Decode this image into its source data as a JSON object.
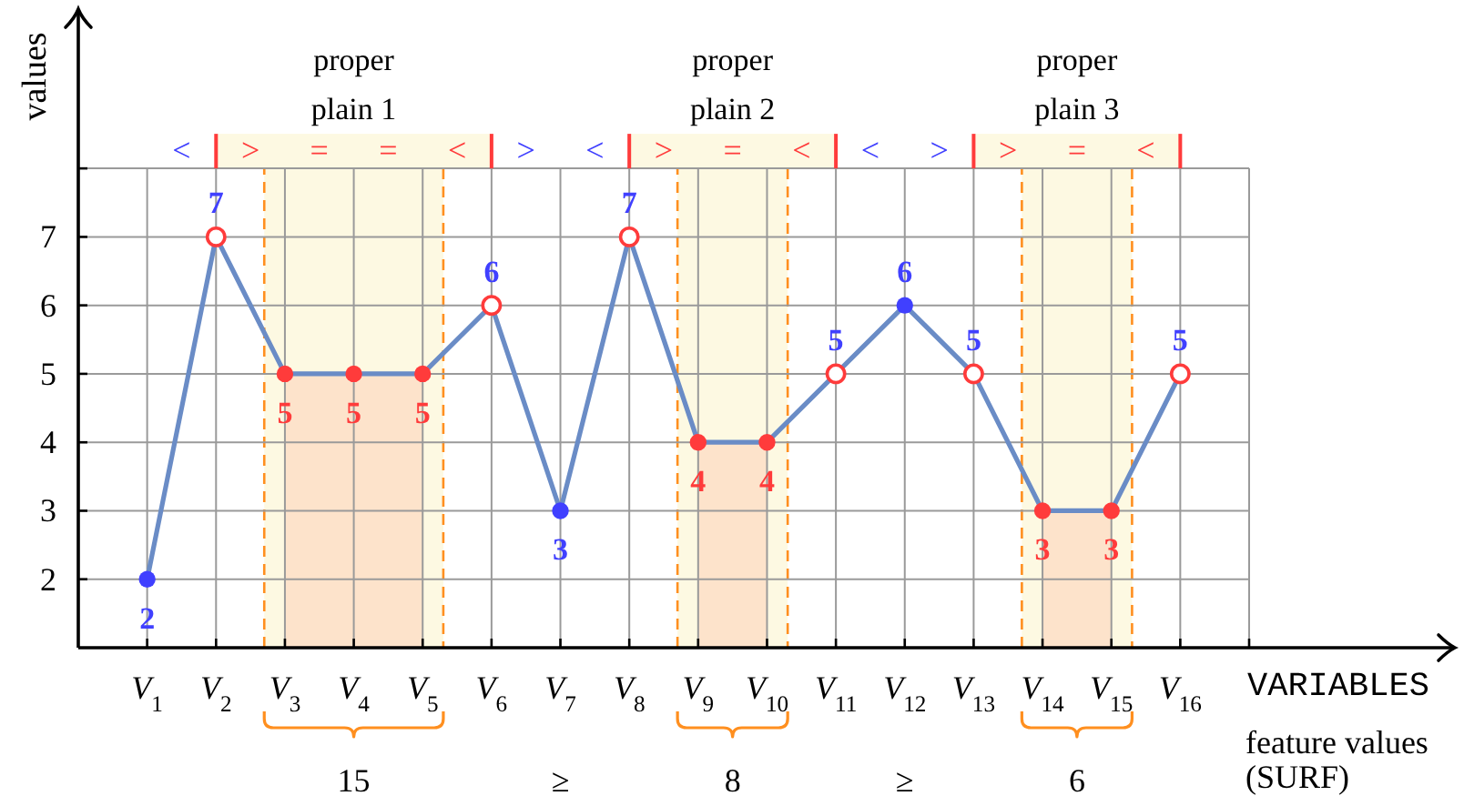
{
  "chart_data": {
    "type": "line",
    "categories": [
      "V$_{1}$",
      "V$_{2}$",
      "V$_{3}$",
      "V$_{4}$",
      "V$_{5}$",
      "V$_{6}$",
      "V$_{7}$",
      "V$_{8}$",
      "V$_{9}$",
      "V$_{10}$",
      "V$_{11}$",
      "V$_{12}$",
      "V$_{13}$",
      "V$_{14}$",
      "V$_{15}$",
      "V$_{16}$"
    ],
    "xlabel": "VARIABLES",
    "ylabel": "values",
    "ylim": [
      1,
      10.3
    ],
    "yticks": [
      2,
      3,
      4,
      5,
      6,
      7,
      {
        "value": 8,
        "label": null
      }
    ],
    "grid": true,
    "series": [
      {
        "type": "area",
        "color": "#fde3cb",
        "values": [
          null,
          null,
          5,
          5,
          5,
          null,
          null,
          null,
          4,
          4,
          null,
          null,
          null,
          3,
          3,
          null
        ]
      },
      {
        "type": "line",
        "color": "#6a8cc6",
        "marker": "none",
        "values": [
          2,
          7,
          5,
          5,
          5,
          6,
          3,
          7,
          4,
          4,
          5,
          6,
          5,
          3,
          3,
          5
        ]
      },
      {
        "type": "scatter",
        "color": "#4040ff",
        "marker": "circle",
        "values": [
          2,
          null,
          null,
          null,
          null,
          null,
          3,
          null,
          null,
          null,
          null,
          6,
          null,
          null,
          null,
          null
        ],
        "value_labels": [
          "2",
          null,
          null,
          null,
          null,
          null,
          "3",
          null,
          null,
          null,
          null,
          "6",
          null,
          null,
          null,
          null
        ]
      },
      {
        "type": "scatter",
        "color": "#4040ff",
        "colors": [
          null,
          "#ff3b3b",
          null,
          null,
          null,
          "#ff3b3b",
          null,
          "#ff3b3b",
          null,
          null,
          "#ff3b3b",
          null,
          "#ff3b3b",
          null,
          null,
          "#ff3b3b"
        ],
        "marker": "circle-open",
        "values": [
          null,
          7,
          null,
          null,
          null,
          6,
          null,
          7,
          null,
          null,
          5,
          null,
          5,
          null,
          null,
          5
        ],
        "value_labels": [
          null,
          "7",
          null,
          null,
          null,
          "6",
          null,
          "7",
          null,
          null,
          "5",
          null,
          "5",
          null,
          null,
          "5"
        ]
      },
      {
        "type": "scatter",
        "color": "#ff3b3b",
        "marker": "circle",
        "values": [
          null,
          null,
          5,
          5,
          5,
          null,
          null,
          null,
          4,
          4,
          null,
          null,
          null,
          3,
          3,
          null
        ],
        "value_labels": [
          null,
          null,
          "5",
          "5",
          "5",
          null,
          null,
          null,
          "4",
          "4",
          null,
          null,
          null,
          "3",
          "3",
          null
        ]
      }
    ],
    "bands": [
      {
        "axis": "x",
        "from": "V$_{3}$",
        "to": "V$_{5}$",
        "color": "#fdf9e2",
        "label": "proper plain 1"
      },
      {
        "axis": "x",
        "from": "V$_{9}$",
        "to": "V$_{10}$",
        "color": "#fdf9e2",
        "label": "proper plain 2"
      },
      {
        "axis": "x",
        "from": "V$_{14}$",
        "to": "V$_{15}$",
        "color": "#fdf9e2",
        "label": "proper plain 3"
      }
    ],
    "annotations": [
      "<",
      ">",
      "=",
      "=",
      "<",
      ">",
      "<",
      ">",
      "=",
      "<",
      "<",
      ">",
      ">",
      "=",
      "<",
      "15",
      "≥",
      "8",
      "≥",
      "6",
      "feature values (SURF)"
    ]
  }
}
